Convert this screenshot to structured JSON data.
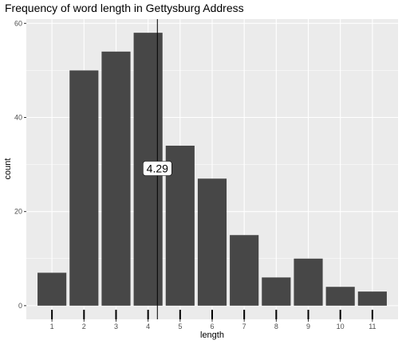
{
  "chart_data": {
    "type": "bar",
    "title": "Frequency of word length in Gettysburg Address",
    "xlabel": "length",
    "ylabel": "count",
    "categories": [
      "1",
      "2",
      "3",
      "4",
      "5",
      "6",
      "7",
      "8",
      "9",
      "10",
      "11"
    ],
    "values": [
      7,
      50,
      54,
      58,
      34,
      27,
      15,
      6,
      10,
      4,
      3
    ],
    "xlim": [
      0.2,
      11.8
    ],
    "ylim": [
      -2.9,
      60.9
    ],
    "y_ticks": [
      0,
      20,
      40,
      60
    ],
    "grid": true,
    "mean_line": {
      "x": 4.29,
      "label": "4.29"
    },
    "rug": {
      "description": "black rug ticks at the bottom of each length",
      "x": [
        1,
        2,
        3,
        4,
        5,
        6,
        7,
        8,
        9,
        10,
        11
      ]
    },
    "colors": {
      "bar": "#474747",
      "panel_background": "#ebebeb",
      "grid": "#ffffff",
      "mean_line": "#000000"
    }
  }
}
